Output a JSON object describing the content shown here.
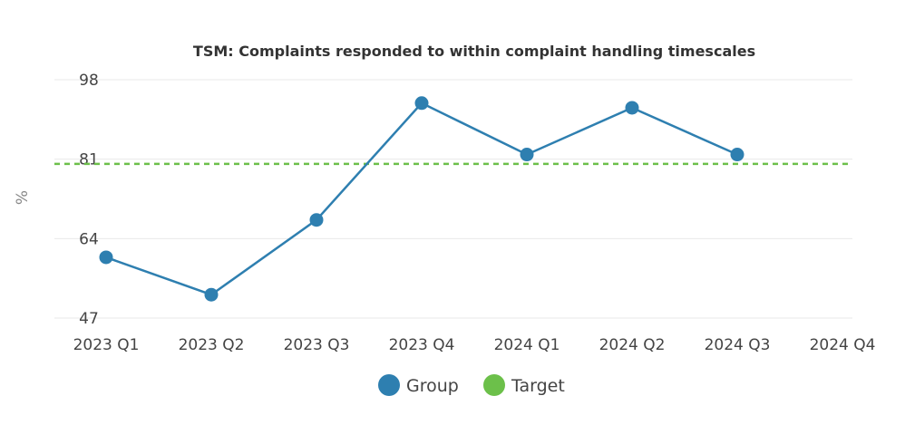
{
  "chart_data": {
    "type": "line",
    "title": "TSM: Complaints responded to within complaint handling timescales",
    "xlabel": "",
    "ylabel": "%",
    "categories": [
      "2023 Q1",
      "2023 Q2",
      "2023 Q3",
      "2023 Q4",
      "2024 Q1",
      "2024 Q2",
      "2024 Q3",
      "2024 Q4"
    ],
    "y_ticks": [
      "47",
      "64",
      "81",
      "98"
    ],
    "ylim": [
      47,
      98
    ],
    "grid": true,
    "legend_position": "bottom-center",
    "series": [
      {
        "name": "Group",
        "color": "#2e7fb0",
        "style": "solid-with-markers",
        "values": [
          60,
          52,
          68,
          93,
          82,
          92,
          82,
          null
        ]
      },
      {
        "name": "Target",
        "color": "#6cc04a",
        "style": "dashed",
        "values": [
          80,
          80,
          80,
          80,
          80,
          80,
          80,
          80
        ]
      }
    ]
  }
}
